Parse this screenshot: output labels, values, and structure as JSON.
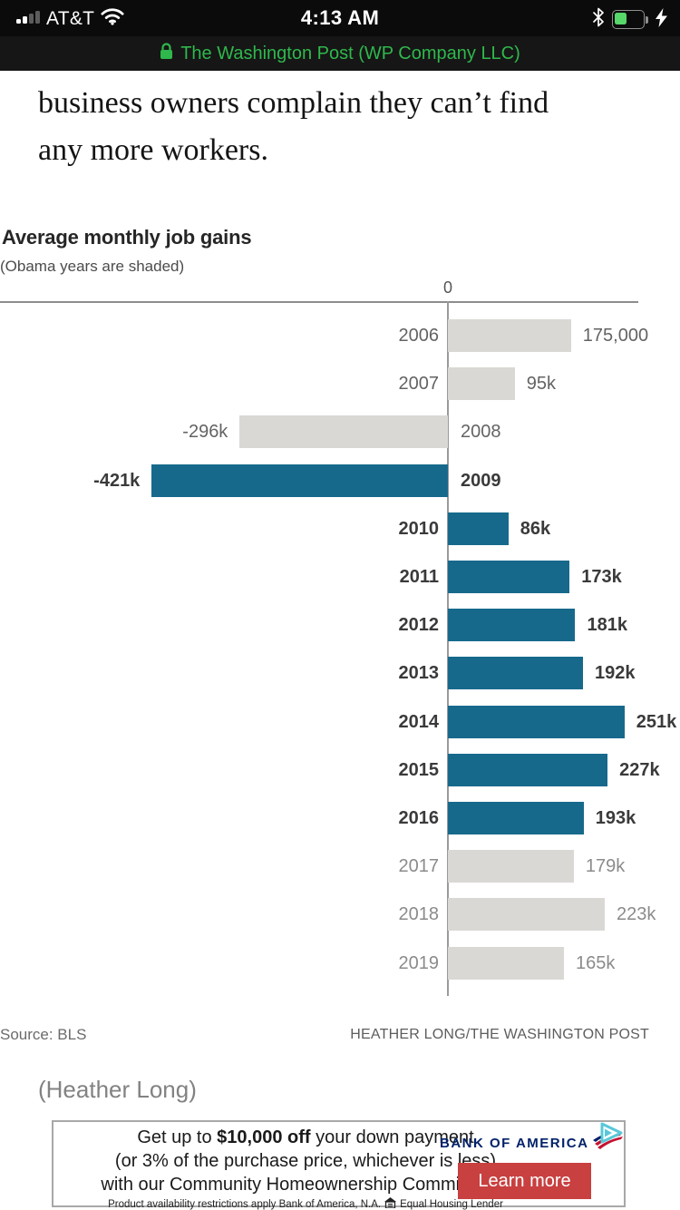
{
  "status_bar": {
    "carrier": "AT&T",
    "time": "4:13 AM",
    "url_text": "The Washington Post (WP Company LLC)",
    "accent_green": "#2fb84c",
    "battery_green": "#57d669",
    "icons": [
      "signal-bars-icon",
      "wifi-icon",
      "bluetooth-icon",
      "battery-icon",
      "charging-bolt-icon",
      "lock-icon"
    ]
  },
  "article": {
    "line1": "business owners complain they can’t find",
    "line2": "any more workers."
  },
  "chart_data": {
    "type": "bar",
    "orientation": "horizontal",
    "title": "Average monthly job gains",
    "subtitle": "(Obama years are shaded)",
    "zero_label": "0",
    "categories": [
      2006,
      2007,
      2008,
      2009,
      2010,
      2011,
      2012,
      2013,
      2014,
      2015,
      2016,
      2017,
      2018,
      2019
    ],
    "values_thousands": [
      175,
      95,
      -296,
      -421,
      86,
      173,
      181,
      192,
      251,
      227,
      193,
      179,
      223,
      165
    ],
    "value_labels": [
      "175,000",
      "95k",
      "-296k",
      "-421k",
      "86k",
      "173k",
      "181k",
      "192k",
      "251k",
      "227k",
      "193k",
      "179k",
      "223k",
      "165k"
    ],
    "obama_years": [
      2009,
      2010,
      2011,
      2012,
      2013,
      2014,
      2015,
      2016
    ],
    "bar_color_obama": "#17698c",
    "bar_color_other": "#d9d8d4",
    "xlim_thousands": [
      -421,
      251
    ],
    "grid": false,
    "source_left": "Source: BLS",
    "credit_right": "HEATHER LONG/THE WASHINGTON POST"
  },
  "caption": "(Heather Long)",
  "ad": {
    "line1_prefix": "Get up to ",
    "line1_bold": "$10,000 off",
    "line1_suffix": " your down payment",
    "line2": "(or 3% of the purchase price, whichever is less)",
    "line3": "with our Community Homeownership Commitment.",
    "small_left": "Product availability restrictions apply Bank of America, N.A.",
    "small_right": "Equal Housing Lender",
    "brand": "BANK OF AMERICA",
    "brand_color": "#012169",
    "button_label": "Learn more",
    "button_color": "#c84040"
  }
}
